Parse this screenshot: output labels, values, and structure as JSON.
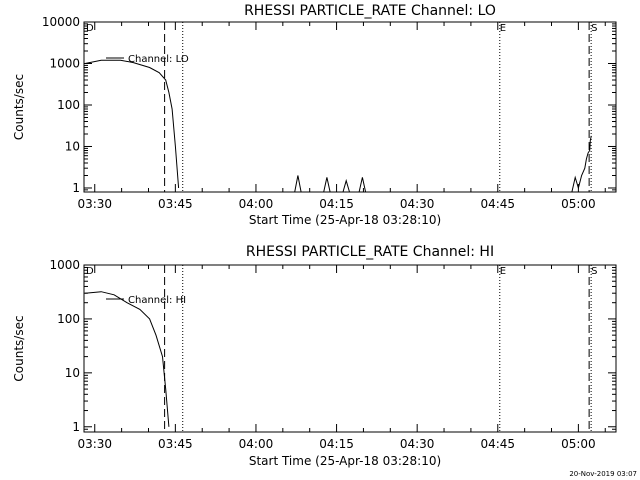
{
  "chart_data": [
    {
      "type": "line",
      "title": "RHESSI PARTICLE_RATE Channel: LO",
      "xlabel": "Start Time (25-Apr-18 03:28:10)",
      "ylabel": "Counts/sec",
      "yscale": "log",
      "ylim": [
        0.8,
        10000
      ],
      "x_ticks": [
        "03:30",
        "03:45",
        "04:00",
        "04:15",
        "04:30",
        "04:45",
        "05:00"
      ],
      "y_ticks": [
        "1",
        "10",
        "100",
        "1000",
        "10000"
      ],
      "legend": "Channel: LO",
      "markers": [
        {
          "label": "D",
          "time": "03:28"
        },
        {
          "label": "E",
          "time": "04:45"
        },
        {
          "label": "S",
          "time": "05:02"
        }
      ],
      "dashed_lines": [
        "03:43",
        "05:02"
      ],
      "dotted_lines": [
        "03:46",
        "04:45",
        "05:02"
      ],
      "series": [
        {
          "values": [
            [
              3.47,
              1000
            ],
            [
              3.52,
              1200
            ],
            [
              3.58,
              1200
            ],
            [
              3.62,
              1050
            ],
            [
              3.67,
              800
            ],
            [
              3.7,
              600
            ],
            [
              3.72,
              400
            ],
            [
              3.73,
              200
            ],
            [
              3.74,
              80
            ],
            [
              3.75,
              10
            ],
            [
              3.76,
              1
            ]
          ]
        },
        {
          "values": [
            [
              4.12,
              0.8
            ],
            [
              4.13,
              2
            ],
            [
              4.14,
              0.8
            ],
            [
              4.21,
              0.8
            ],
            [
              4.22,
              1.8
            ],
            [
              4.23,
              0.8
            ],
            [
              4.27,
              0.8
            ],
            [
              4.28,
              1.5
            ],
            [
              4.29,
              0.8
            ],
            [
              4.32,
              0.8
            ],
            [
              4.33,
              1.8
            ],
            [
              4.34,
              0.8
            ],
            [
              4.98,
              0.8
            ],
            [
              4.99,
              1.8
            ],
            [
              5.0,
              1
            ],
            [
              5.01,
              2
            ],
            [
              5.02,
              3
            ],
            [
              5.025,
              5
            ],
            [
              5.03,
              7
            ],
            [
              5.035,
              8
            ],
            [
              5.037,
              14
            ],
            [
              5.04,
              18
            ]
          ]
        }
      ]
    },
    {
      "type": "line",
      "title": "RHESSI PARTICLE_RATE Channel: HI",
      "xlabel": "Start Time (25-Apr-18 03:28:10)",
      "ylabel": "Counts/sec",
      "yscale": "log",
      "ylim": [
        0.8,
        1000
      ],
      "x_ticks": [
        "03:30",
        "03:45",
        "04:00",
        "04:15",
        "04:30",
        "04:45",
        "05:00"
      ],
      "y_ticks": [
        "1",
        "10",
        "100",
        "1000"
      ],
      "legend": "Channel: HI",
      "markers": [
        {
          "label": "D",
          "time": "03:28"
        },
        {
          "label": "E",
          "time": "04:45"
        },
        {
          "label": "S",
          "time": "05:02"
        }
      ],
      "dashed_lines": [
        "03:43",
        "05:02"
      ],
      "dotted_lines": [
        "03:46",
        "04:45",
        "05:02"
      ],
      "series": [
        {
          "values": [
            [
              3.47,
              300
            ],
            [
              3.52,
              320
            ],
            [
              3.56,
              280
            ],
            [
              3.6,
              200
            ],
            [
              3.64,
              150
            ],
            [
              3.67,
              100
            ],
            [
              3.69,
              50
            ],
            [
              3.71,
              20
            ],
            [
              3.72,
              5
            ],
            [
              3.73,
              1
            ]
          ]
        }
      ]
    }
  ],
  "footer": {
    "timestamp": "20-Nov-2019 03:07"
  }
}
